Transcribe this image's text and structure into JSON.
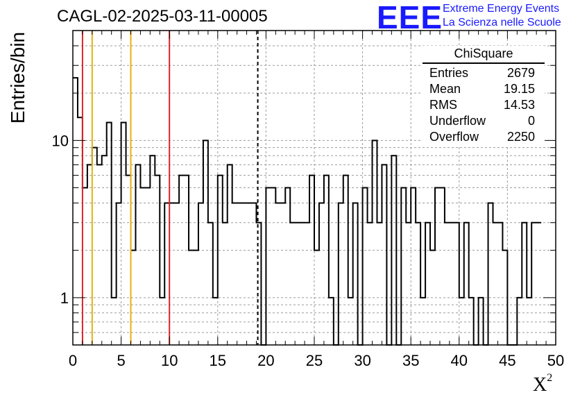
{
  "header": {
    "title": "CAGL-02-2025-03-11-00005",
    "logo_text": "EEE",
    "logo_line1": "Extreme Energy Events",
    "logo_line2": "La Scienza nelle Scuole"
  },
  "stats": {
    "title": "ChiSquare",
    "rows": [
      {
        "label": "Entries",
        "value": "2679"
      },
      {
        "label": "Mean",
        "value": "19.15"
      },
      {
        "label": "RMS",
        "value": "14.53"
      },
      {
        "label": "Underflow",
        "value": "0"
      },
      {
        "label": "Overflow",
        "value": "2250"
      }
    ]
  },
  "chart_data": {
    "type": "histogram",
    "title": "CAGL-02-2025-03-11-00005",
    "xlabel": "X",
    "xlabel_superscript": "2",
    "ylabel": "Entries/bin",
    "yscale": "log",
    "xlim": [
      0,
      50
    ],
    "ylim": [
      0.5,
      50
    ],
    "bin_width": 0.5,
    "x_ticks": [
      "0",
      "5",
      "10",
      "15",
      "20",
      "25",
      "30",
      "35",
      "40",
      "45",
      "50"
    ],
    "y_ticks": [
      "1",
      "10"
    ],
    "grid": true,
    "values": [
      25,
      14,
      5,
      7,
      9,
      7,
      8,
      13,
      1,
      4,
      13,
      6,
      2,
      7,
      5,
      5,
      8,
      6,
      1,
      4,
      4,
      4,
      6,
      6,
      2,
      2,
      4,
      10,
      3,
      1,
      6,
      3,
      7,
      4,
      4,
      4,
      4,
      4,
      3,
      0,
      5,
      5,
      4,
      4,
      5,
      3,
      3,
      3,
      3,
      6,
      2,
      4,
      6,
      1,
      0,
      4,
      6,
      1,
      4,
      0,
      5,
      3,
      10,
      3,
      7,
      0,
      8,
      0,
      5,
      3,
      5,
      3,
      1,
      3,
      2,
      5,
      5,
      3,
      3,
      3,
      1,
      3,
      1,
      0,
      1,
      0,
      4,
      3,
      3,
      2,
      0,
      0,
      1,
      3,
      1,
      3,
      3
    ],
    "vertical_lines": [
      {
        "x": 1,
        "color": "#dd2222",
        "style": "solid"
      },
      {
        "x": 2,
        "color": "#e8b010",
        "style": "solid"
      },
      {
        "x": 6,
        "color": "#e8b010",
        "style": "solid"
      },
      {
        "x": 10,
        "color": "#dd2222",
        "style": "solid"
      },
      {
        "x": 19.15,
        "color": "#000000",
        "style": "dashed"
      }
    ],
    "line_color": "#000000"
  }
}
